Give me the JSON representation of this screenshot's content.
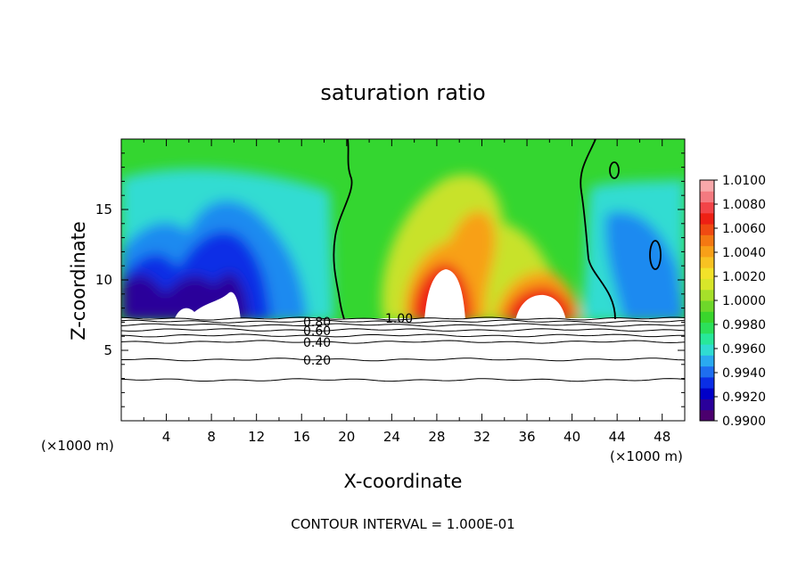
{
  "chart_data": {
    "type": "heatmap",
    "title": "saturation ratio",
    "xlabel": "X-coordinate",
    "ylabel": "Z-coordinate",
    "x_unit_left": "(×1000 m)",
    "x_unit_right": "(×1000 m)",
    "footer": "CONTOUR INTERVAL = 1.000E-01",
    "xlim": [
      0,
      50
    ],
    "ylim": [
      0,
      20
    ],
    "x_ticks": [
      4,
      8,
      12,
      16,
      20,
      24,
      28,
      32,
      36,
      40,
      44,
      48
    ],
    "y_ticks": [
      5,
      10,
      15
    ],
    "colorbar": {
      "levels": [
        "0.9900",
        "0.9920",
        "0.9940",
        "0.9960",
        "0.9980",
        "1.0000",
        "1.0020",
        "1.0040",
        "1.0060",
        "1.0080",
        "1.0100"
      ],
      "colors": [
        "#4b006e",
        "#2a009a",
        "#0000c8",
        "#0a2ee6",
        "#1e6ef0",
        "#2aaaf0",
        "#30dcd2",
        "#28e89a",
        "#2ce05a",
        "#3ad62c",
        "#6ed82a",
        "#a6e02a",
        "#d8e62a",
        "#f2e22a",
        "#f8c222",
        "#f8a018",
        "#f47812",
        "#f04a12",
        "#ee2014",
        "#f24448",
        "#f47a80",
        "#f8a8aa"
      ]
    },
    "contour_labels": [
      {
        "text": "0.20",
        "z": 4.3
      },
      {
        "text": "0.40",
        "z": 5.6
      },
      {
        "text": "0.60",
        "z": 6.3
      },
      {
        "text": "0.80",
        "z": 6.9
      },
      {
        "text": "1.00",
        "z": 7.3
      }
    ],
    "isolines_z": [
      2.9,
      4.35,
      5.6,
      6.05,
      6.45,
      6.8,
      7.05,
      7.25
    ]
  }
}
